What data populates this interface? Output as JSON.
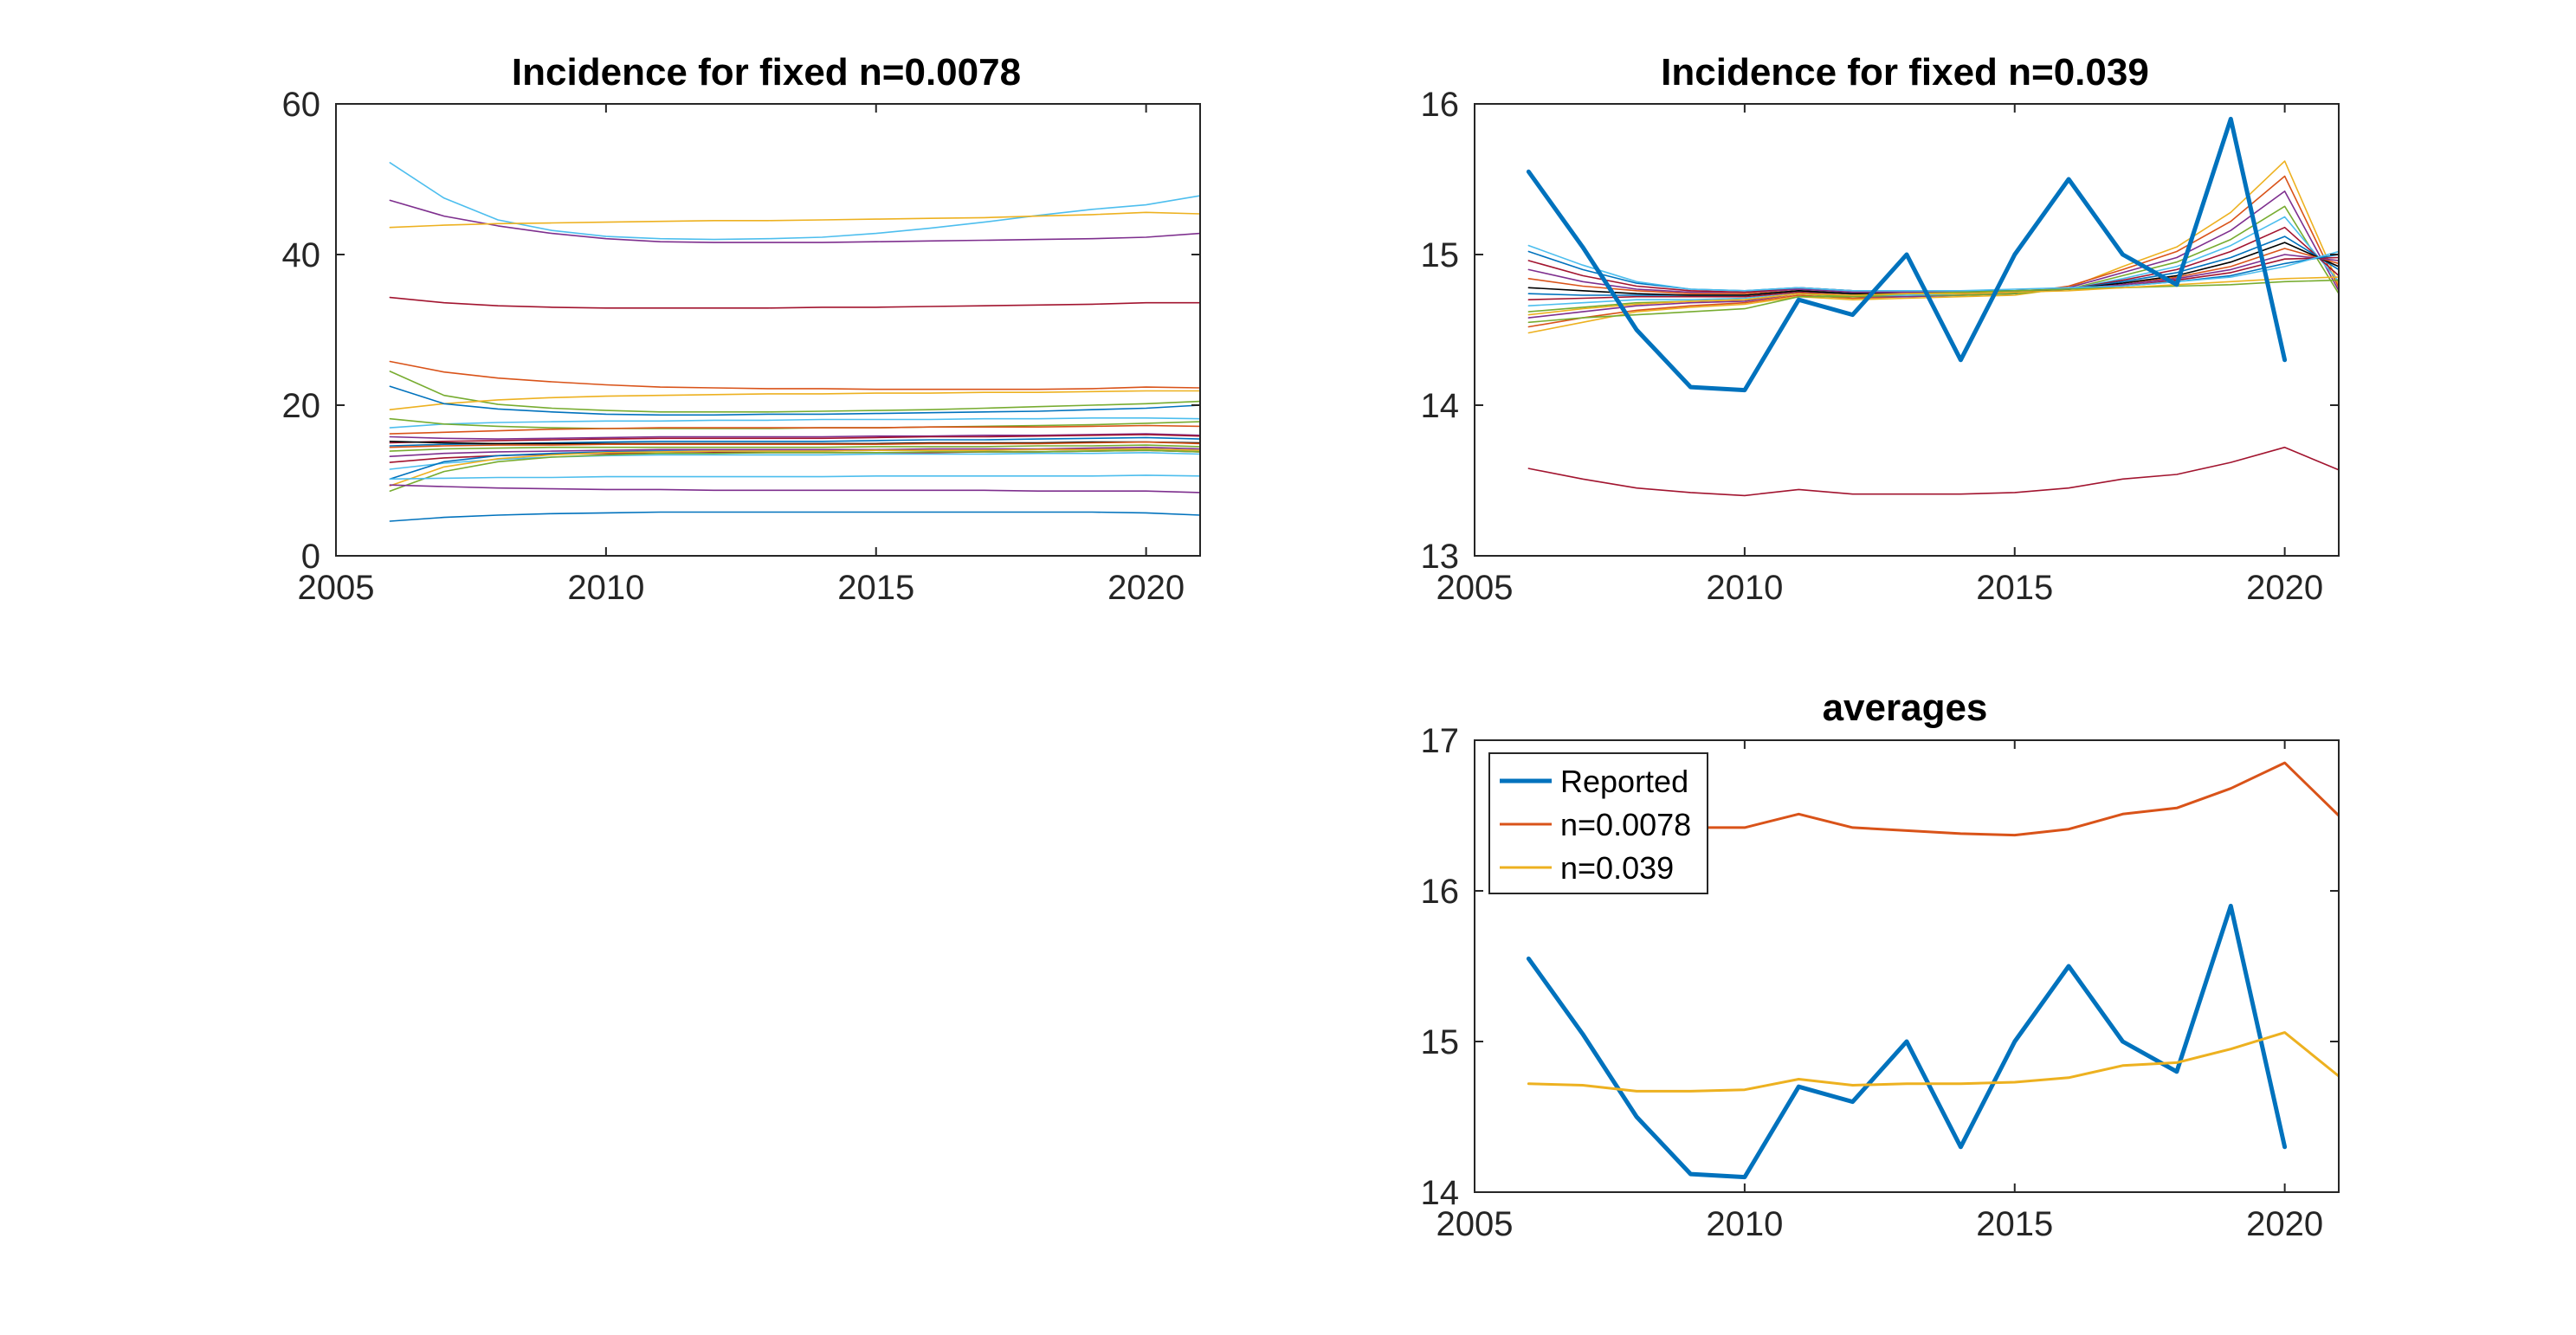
{
  "colors": {
    "reported": "#0072BD",
    "n0078": "#D95319",
    "n039": "#EDB120",
    "palette": [
      "#0072BD",
      "#D95319",
      "#EDB120",
      "#7E2F8E",
      "#77AC30",
      "#4DBEEE",
      "#A2142F"
    ]
  },
  "chart_data": [
    {
      "type": "line",
      "title": "Incidence for fixed n=0.0078",
      "xlim": [
        2005,
        2021
      ],
      "ylim": [
        0,
        60
      ],
      "xticks": [
        2005,
        2010,
        2015,
        2020
      ],
      "yticks": [
        0,
        20,
        40,
        60
      ],
      "grid": false,
      "x": [
        2006,
        2007,
        2008,
        2009,
        2010,
        2011,
        2012,
        2013,
        2014,
        2015,
        2016,
        2017,
        2018,
        2019,
        2020,
        2021
      ],
      "series": [
        {
          "color": "#4DBEEE",
          "values": [
            52.2,
            47.5,
            44.6,
            43.2,
            42.4,
            42.1,
            42.0,
            42.1,
            42.3,
            42.8,
            43.5,
            44.3,
            45.2,
            46.0,
            46.6,
            47.8
          ]
        },
        {
          "color": "#7E2F8E",
          "values": [
            47.2,
            45.1,
            43.8,
            42.8,
            42.1,
            41.7,
            41.6,
            41.6,
            41.6,
            41.7,
            41.8,
            41.9,
            42.0,
            42.1,
            42.3,
            42.8
          ]
        },
        {
          "color": "#EDB120",
          "values": [
            43.6,
            43.9,
            44.1,
            44.2,
            44.3,
            44.4,
            44.5,
            44.5,
            44.6,
            44.7,
            44.8,
            44.9,
            45.1,
            45.3,
            45.6,
            45.4
          ]
        },
        {
          "color": "#A2142F",
          "values": [
            34.3,
            33.6,
            33.2,
            33.0,
            32.9,
            32.9,
            32.9,
            32.9,
            33.0,
            33.0,
            33.1,
            33.2,
            33.3,
            33.4,
            33.6,
            33.6
          ]
        },
        {
          "color": "#D95319",
          "values": [
            25.8,
            24.4,
            23.6,
            23.1,
            22.7,
            22.4,
            22.3,
            22.2,
            22.2,
            22.1,
            22.1,
            22.1,
            22.1,
            22.2,
            22.4,
            22.3
          ]
        },
        {
          "color": "#77AC30",
          "values": [
            24.5,
            21.3,
            20.1,
            19.6,
            19.3,
            19.1,
            19.1,
            19.1,
            19.2,
            19.3,
            19.4,
            19.6,
            19.8,
            20.0,
            20.2,
            20.5
          ]
        },
        {
          "color": "#EDB120",
          "values": [
            19.4,
            20.2,
            20.7,
            21.0,
            21.2,
            21.3,
            21.4,
            21.5,
            21.5,
            21.6,
            21.6,
            21.7,
            21.7,
            21.8,
            21.9,
            21.9
          ]
        },
        {
          "color": "#0072BD",
          "values": [
            22.5,
            20.2,
            19.5,
            19.1,
            18.8,
            18.7,
            18.7,
            18.8,
            18.8,
            18.9,
            19.0,
            19.1,
            19.2,
            19.4,
            19.6,
            20.0
          ]
        },
        {
          "color": "#4DBEEE",
          "values": [
            17.0,
            17.5,
            17.7,
            17.8,
            17.9,
            17.9,
            18.0,
            18.0,
            18.1,
            18.1,
            18.1,
            18.2,
            18.2,
            18.3,
            18.3,
            18.2
          ]
        },
        {
          "color": "#77AC30",
          "values": [
            18.2,
            17.5,
            17.2,
            17.0,
            16.9,
            16.9,
            16.9,
            16.9,
            17.0,
            17.0,
            17.1,
            17.2,
            17.3,
            17.4,
            17.6,
            17.8
          ]
        },
        {
          "color": "#D95319",
          "values": [
            16.2,
            16.4,
            16.6,
            16.8,
            16.9,
            17.0,
            17.0,
            17.0,
            17.0,
            17.0,
            17.1,
            17.1,
            17.1,
            17.2,
            17.3,
            17.2
          ]
        },
        {
          "color": "#7E2F8E",
          "values": [
            15.8,
            15.6,
            15.5,
            15.6,
            15.7,
            15.8,
            15.8,
            15.8,
            15.8,
            15.9,
            15.9,
            16.0,
            16.0,
            16.1,
            16.2,
            16.0
          ]
        },
        {
          "color": "#A2142F",
          "values": [
            15.0,
            15.2,
            15.3,
            15.4,
            15.5,
            15.6,
            15.6,
            15.6,
            15.6,
            15.7,
            15.8,
            15.8,
            15.9,
            16.0,
            16.1,
            15.9
          ]
        },
        {
          "color": "#0072BD",
          "values": [
            14.6,
            14.8,
            14.9,
            15.0,
            15.1,
            15.2,
            15.2,
            15.2,
            15.2,
            15.3,
            15.4,
            15.4,
            15.5,
            15.6,
            15.7,
            15.5
          ]
        },
        {
          "color": "#000000",
          "values": [
            15.2,
            15.0,
            14.9,
            14.9,
            14.9,
            14.9,
            14.9,
            14.9,
            14.9,
            14.9,
            15.0,
            15.0,
            15.0,
            15.1,
            15.1,
            15.0
          ]
        },
        {
          "color": "#D95319",
          "values": [
            14.4,
            14.6,
            14.7,
            14.7,
            14.8,
            14.8,
            14.8,
            14.8,
            14.8,
            14.8,
            14.9,
            14.9,
            14.9,
            15.0,
            15.1,
            14.9
          ]
        },
        {
          "color": "#77AC30",
          "values": [
            13.9,
            14.2,
            14.3,
            14.4,
            14.4,
            14.4,
            14.4,
            14.4,
            14.4,
            14.5,
            14.5,
            14.5,
            14.6,
            14.6,
            14.7,
            14.5
          ]
        },
        {
          "color": "#7E2F8E",
          "values": [
            13.2,
            13.6,
            13.8,
            13.9,
            14.0,
            14.1,
            14.1,
            14.1,
            14.1,
            14.1,
            14.2,
            14.2,
            14.2,
            14.3,
            14.4,
            14.2
          ]
        },
        {
          "color": "#A2142F",
          "values": [
            12.4,
            13.0,
            13.3,
            13.5,
            13.6,
            13.6,
            13.7,
            13.7,
            13.7,
            13.7,
            13.7,
            13.8,
            13.8,
            13.9,
            14.0,
            13.8
          ]
        },
        {
          "color": "#4DBEEE",
          "values": [
            11.5,
            12.3,
            12.8,
            13.1,
            13.3,
            13.4,
            13.4,
            13.4,
            13.4,
            13.5,
            13.5,
            13.5,
            13.6,
            13.6,
            13.7,
            13.5
          ]
        },
        {
          "color": "#0072BD",
          "values": [
            10.2,
            12.5,
            13.3,
            13.6,
            13.8,
            13.9,
            13.9,
            13.9,
            13.9,
            14.0,
            14.0,
            14.0,
            14.1,
            14.1,
            14.2,
            14.0
          ]
        },
        {
          "color": "#EDB120",
          "values": [
            9.3,
            11.8,
            12.9,
            13.4,
            13.7,
            13.8,
            13.9,
            13.9,
            13.9,
            14.0,
            14.0,
            14.0,
            14.1,
            14.1,
            14.2,
            14.0
          ]
        },
        {
          "color": "#77AC30",
          "values": [
            8.6,
            11.2,
            12.5,
            13.1,
            13.4,
            13.6,
            13.6,
            13.7,
            13.7,
            13.7,
            13.8,
            13.8,
            13.8,
            13.9,
            14.0,
            13.8
          ]
        },
        {
          "color": "#4DBEEE",
          "values": [
            10.2,
            10.3,
            10.4,
            10.4,
            10.5,
            10.5,
            10.5,
            10.5,
            10.5,
            10.6,
            10.6,
            10.6,
            10.6,
            10.6,
            10.7,
            10.6
          ]
        },
        {
          "color": "#7E2F8E",
          "values": [
            9.4,
            9.2,
            9.0,
            8.9,
            8.8,
            8.8,
            8.7,
            8.7,
            8.7,
            8.7,
            8.7,
            8.7,
            8.6,
            8.6,
            8.6,
            8.4
          ]
        },
        {
          "color": "#0072BD",
          "values": [
            4.6,
            5.1,
            5.4,
            5.6,
            5.7,
            5.8,
            5.8,
            5.8,
            5.8,
            5.8,
            5.8,
            5.8,
            5.8,
            5.8,
            5.7,
            5.4
          ]
        }
      ]
    },
    {
      "type": "line",
      "title": "Incidence for fixed n=0.039",
      "xlim": [
        2005,
        2021
      ],
      "ylim": [
        13,
        16
      ],
      "xticks": [
        2005,
        2010,
        2015,
        2020
      ],
      "yticks": [
        13,
        14,
        15,
        16
      ],
      "grid": false,
      "x": [
        2006,
        2007,
        2008,
        2009,
        2010,
        2011,
        2012,
        2013,
        2014,
        2015,
        2016,
        2017,
        2018,
        2019,
        2020,
        2021
      ],
      "reported": [
        15.55,
        15.05,
        14.5,
        14.12,
        14.1,
        14.7,
        14.6,
        15.0,
        14.3,
        15.0,
        15.5,
        15.0,
        14.8,
        15.9,
        14.3
      ],
      "series": [
        {
          "color": "#EDB120",
          "values": [
            14.48,
            14.55,
            14.62,
            14.65,
            14.67,
            14.72,
            14.7,
            14.71,
            14.72,
            14.73,
            14.78,
            14.92,
            15.05,
            15.28,
            15.62,
            14.8
          ]
        },
        {
          "color": "#D95319",
          "values": [
            14.52,
            14.58,
            14.63,
            14.66,
            14.68,
            14.73,
            14.71,
            14.72,
            14.73,
            14.74,
            14.79,
            14.9,
            15.02,
            15.22,
            15.52,
            14.78
          ]
        },
        {
          "color": "#7E2F8E",
          "values": [
            14.58,
            14.62,
            14.66,
            14.68,
            14.69,
            14.74,
            14.72,
            14.72,
            14.73,
            14.74,
            14.78,
            14.88,
            14.98,
            15.16,
            15.42,
            14.76
          ]
        },
        {
          "color": "#77AC30",
          "values": [
            14.62,
            14.65,
            14.68,
            14.69,
            14.7,
            14.74,
            14.72,
            14.73,
            14.73,
            14.74,
            14.77,
            14.86,
            14.95,
            15.1,
            15.32,
            14.74
          ]
        },
        {
          "color": "#4DBEEE",
          "values": [
            14.66,
            14.68,
            14.7,
            14.7,
            14.71,
            14.75,
            14.73,
            14.73,
            14.74,
            14.75,
            14.77,
            14.84,
            14.92,
            15.06,
            15.25,
            14.82
          ]
        },
        {
          "color": "#A2142F",
          "values": [
            14.7,
            14.71,
            14.72,
            14.72,
            14.72,
            14.75,
            14.73,
            14.74,
            14.74,
            14.75,
            14.77,
            14.83,
            14.9,
            15.02,
            15.18,
            14.86
          ]
        },
        {
          "color": "#0072BD",
          "values": [
            14.74,
            14.73,
            14.73,
            14.73,
            14.73,
            14.76,
            14.74,
            14.74,
            14.75,
            14.75,
            14.77,
            14.82,
            14.88,
            14.98,
            15.12,
            14.9
          ]
        },
        {
          "color": "#000000",
          "values": [
            14.78,
            14.76,
            14.74,
            14.73,
            14.73,
            14.76,
            14.74,
            14.74,
            14.75,
            14.75,
            14.77,
            14.81,
            14.86,
            14.95,
            15.08,
            14.92
          ]
        },
        {
          "color": "#D95319",
          "values": [
            14.84,
            14.79,
            14.76,
            14.74,
            14.74,
            14.77,
            14.75,
            14.75,
            14.75,
            14.76,
            14.77,
            14.8,
            14.85,
            14.92,
            15.04,
            14.94
          ]
        },
        {
          "color": "#7E2F8E",
          "values": [
            14.9,
            14.82,
            14.77,
            14.75,
            14.75,
            14.77,
            14.75,
            14.75,
            14.75,
            14.76,
            14.77,
            14.8,
            14.84,
            14.9,
            15.0,
            14.96
          ]
        },
        {
          "color": "#A2142F",
          "values": [
            14.96,
            14.86,
            14.79,
            14.76,
            14.75,
            14.78,
            14.76,
            14.76,
            14.76,
            14.76,
            14.77,
            14.79,
            14.83,
            14.88,
            14.97,
            14.98
          ]
        },
        {
          "color": "#0072BD",
          "values": [
            15.02,
            14.9,
            14.81,
            14.77,
            14.76,
            14.78,
            14.76,
            14.76,
            14.76,
            14.76,
            14.77,
            14.79,
            14.82,
            14.86,
            14.94,
            15.0
          ]
        },
        {
          "color": "#4DBEEE",
          "values": [
            15.06,
            14.93,
            14.82,
            14.77,
            14.76,
            14.78,
            14.76,
            14.76,
            14.76,
            14.77,
            14.78,
            14.79,
            14.82,
            14.85,
            14.92,
            15.02
          ]
        },
        {
          "color": "#77AC30",
          "values": [
            14.55,
            14.58,
            14.6,
            14.62,
            14.64,
            14.72,
            14.72,
            14.74,
            14.75,
            14.76,
            14.77,
            14.78,
            14.79,
            14.8,
            14.82,
            14.83
          ]
        },
        {
          "color": "#EDB120",
          "values": [
            14.6,
            14.64,
            14.67,
            14.69,
            14.7,
            14.74,
            14.73,
            14.74,
            14.74,
            14.75,
            14.76,
            14.78,
            14.8,
            14.82,
            14.84,
            14.85
          ]
        },
        {
          "color": "#A2142F",
          "values": [
            13.58,
            13.51,
            13.45,
            13.42,
            13.4,
            13.44,
            13.41,
            13.41,
            13.41,
            13.42,
            13.45,
            13.51,
            13.54,
            13.62,
            13.72,
            13.57
          ]
        }
      ]
    },
    {
      "type": "line",
      "title": "averages",
      "xlim": [
        2005,
        2021
      ],
      "ylim": [
        14,
        17
      ],
      "xticks": [
        2005,
        2010,
        2015,
        2020
      ],
      "yticks": [
        14,
        15,
        16,
        17
      ],
      "grid": false,
      "legend_position": "top-left",
      "x": [
        2006,
        2007,
        2008,
        2009,
        2010,
        2011,
        2012,
        2013,
        2014,
        2015,
        2016,
        2017,
        2018,
        2019,
        2020,
        2021
      ],
      "series": [
        {
          "name": "Reported",
          "color": "#0072BD",
          "width": 5,
          "values": [
            15.55,
            15.05,
            14.5,
            14.12,
            14.1,
            14.7,
            14.6,
            15.0,
            14.3,
            15.0,
            15.5,
            15.0,
            14.8,
            15.9,
            14.3,
            null
          ]
        },
        {
          "name": "n=0.0078",
          "color": "#D95319",
          "width": 3,
          "values": [
            16.6,
            16.52,
            16.44,
            16.42,
            16.42,
            16.51,
            16.42,
            16.4,
            16.38,
            16.37,
            16.41,
            16.51,
            16.55,
            16.68,
            16.85,
            16.5
          ]
        },
        {
          "name": "n=0.039",
          "color": "#EDB120",
          "width": 3,
          "values": [
            14.72,
            14.71,
            14.67,
            14.67,
            14.68,
            14.75,
            14.71,
            14.72,
            14.72,
            14.73,
            14.76,
            14.84,
            14.86,
            14.95,
            15.06,
            14.77
          ]
        }
      ]
    }
  ]
}
